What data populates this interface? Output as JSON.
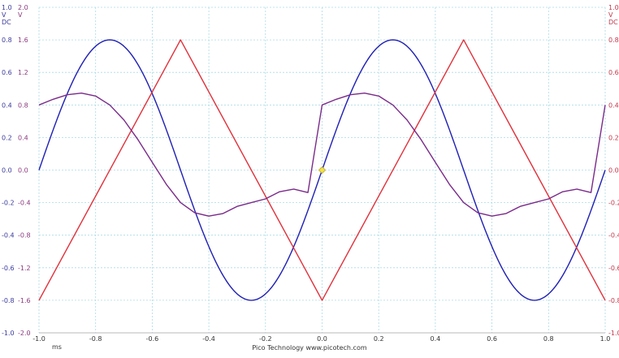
{
  "chart_data": {
    "type": "line",
    "title": "",
    "xlabel": "ms",
    "ylabel": "",
    "xlim": [
      -1.0,
      1.0
    ],
    "x_ticks": [
      "-1.0",
      "-0.8",
      "-0.6",
      "-0.4",
      "-0.2",
      "0.0",
      "0.2",
      "0.4",
      "0.6",
      "0.8",
      "1.0"
    ],
    "axes": [
      {
        "id": "axis_a",
        "side": "left-outer",
        "unit": "V",
        "coupling": "DC",
        "ylim": [
          -1.0,
          1.0
        ],
        "ticks": [
          "1.0",
          "0.8",
          "0.6",
          "0.4",
          "0.2",
          "0.0",
          "-0.2",
          "-0.4",
          "-0.6",
          "-0.8",
          "-1.0"
        ],
        "color": "#3a3a9e"
      },
      {
        "id": "axis_b",
        "side": "left-inner",
        "unit": "V",
        "coupling": "",
        "ylim": [
          -2.0,
          2.0
        ],
        "ticks": [
          "2.0",
          "1.6",
          "1.2",
          "0.8",
          "0.4",
          "0.0",
          "-0.4",
          "-0.8",
          "-1.2",
          "-1.6",
          "-2.0"
        ],
        "color": "#8a3a7e"
      },
      {
        "id": "axis_c",
        "side": "right",
        "unit": "V",
        "coupling": "DC",
        "ylim": [
          -1.0,
          1.0
        ],
        "ticks": [
          "1.0",
          "0.8",
          "0.6",
          "0.4",
          "0.2",
          "0.0",
          "-0.2",
          "-0.4",
          "-0.6",
          "-0.8",
          "-1.0"
        ],
        "color": "#c0394b"
      }
    ],
    "series": [
      {
        "shape": "sine",
        "color": "#1f1fb4",
        "axis": "axis_a",
        "x": [
          -1.0,
          -0.875,
          -0.75,
          -0.625,
          -0.5,
          -0.375,
          -0.25,
          -0.125,
          0.0,
          0.125,
          0.25,
          0.375,
          0.5,
          0.625,
          0.75,
          0.875,
          1.0
        ],
        "y": [
          0.0,
          0.566,
          0.8,
          0.566,
          0.0,
          -0.566,
          -0.8,
          -0.566,
          0.0,
          0.566,
          0.8,
          0.566,
          0.0,
          -0.566,
          -0.8,
          -0.566,
          0.0
        ]
      },
      {
        "shape": "triangle",
        "color": "#e0303a",
        "axis": "axis_a",
        "x": [
          -1.0,
          -0.5,
          0.0,
          0.5,
          1.0
        ],
        "y": [
          -0.8,
          0.8,
          -0.8,
          0.8,
          -0.8
        ]
      },
      {
        "shape": "sine-plus-triangle",
        "color": "#7a2a8a",
        "axis": "axis_a",
        "x": [
          -1.0,
          -0.95,
          -0.9,
          -0.85,
          -0.8,
          -0.75,
          -0.7,
          -0.65,
          -0.6,
          -0.55,
          -0.5,
          -0.45,
          -0.4,
          -0.35,
          -0.3,
          -0.25,
          -0.2,
          -0.15,
          -0.1,
          -0.05,
          0.0,
          0.05,
          0.1,
          0.15,
          0.2,
          0.25,
          0.3,
          0.35,
          0.4,
          0.45,
          0.5,
          0.55,
          0.6,
          0.65,
          0.7,
          0.75,
          0.8,
          0.85,
          0.9,
          0.95,
          1.0
        ],
        "y": [
          0.4,
          0.435,
          0.463,
          0.473,
          0.455,
          0.4,
          0.308,
          0.186,
          0.048,
          -0.088,
          -0.2,
          -0.262,
          -0.283,
          -0.267,
          -0.223,
          -0.2,
          -0.177,
          -0.133,
          -0.117,
          -0.138,
          0.4,
          0.435,
          0.463,
          0.473,
          0.455,
          0.4,
          0.308,
          0.186,
          0.048,
          -0.088,
          -0.2,
          -0.262,
          -0.283,
          -0.267,
          -0.223,
          -0.2,
          -0.177,
          -0.133,
          -0.117,
          -0.138,
          0.4
        ]
      }
    ],
    "marker": {
      "x": 0.0,
      "y": 0.0,
      "color": "#f2e24a"
    },
    "grid": true,
    "legend": "none",
    "footer": "Pico Technology   www.picotech.com"
  }
}
